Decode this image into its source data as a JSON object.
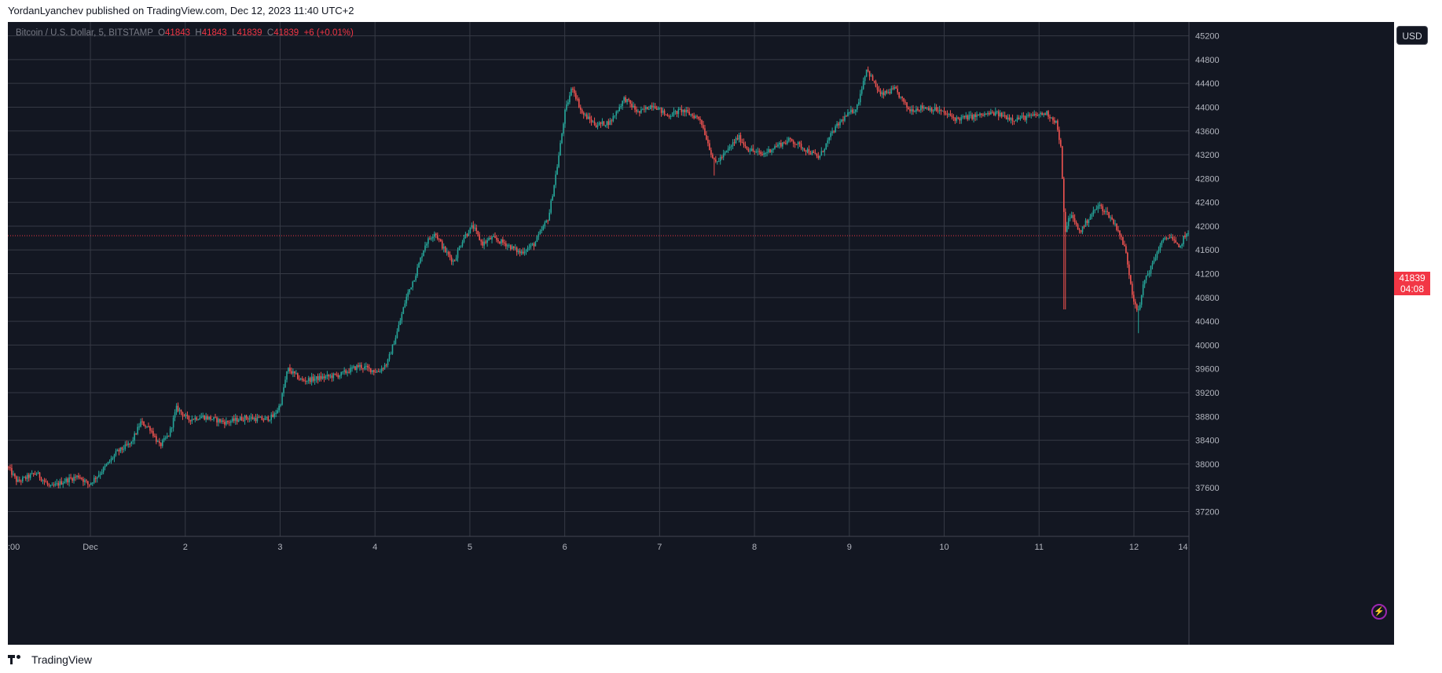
{
  "header": {
    "publisher_line": "YordanLyanchev published on TradingView.com, Dec 12, 2023 11:40 UTC+2"
  },
  "legend": {
    "symbol": "Bitcoin / U.S. Dollar, 5, BITSTAMP",
    "open_label": "O",
    "open": "41843",
    "high_label": "H",
    "high": "41843",
    "low_label": "L",
    "low": "41839",
    "close_label": "C",
    "close": "41839",
    "change": "+6 (+0.01%)"
  },
  "currency_button": "USD",
  "last_price": {
    "price": "41839",
    "countdown": "04:08"
  },
  "footer": {
    "brand": "TradingView"
  },
  "colors": {
    "background": "#131722",
    "up": "#26a69a",
    "down": "#ef5350",
    "grid": "#363a45",
    "text": "#b2b5be",
    "last_price": "#f23645"
  },
  "chart_data": {
    "type": "candlestick",
    "title": "Bitcoin / U.S. Dollar, 5, BITSTAMP",
    "x_tick_labels": [
      ":00",
      "Dec",
      "2",
      "3",
      "4",
      "5",
      "6",
      "7",
      "8",
      "9",
      "10",
      "11",
      "12",
      "14:"
    ],
    "x_tick_days": [
      0.0,
      0.87,
      1.87,
      2.87,
      3.87,
      4.87,
      5.87,
      6.87,
      7.87,
      8.87,
      9.87,
      10.87,
      11.87,
      12.4
    ],
    "y_ticks": [
      37200,
      37600,
      38000,
      38400,
      38800,
      39200,
      39600,
      40000,
      40400,
      40800,
      41200,
      41600,
      42000,
      42400,
      42800,
      43200,
      43600,
      44000,
      44400,
      44800,
      45200
    ],
    "ylim": [
      36850,
      45300
    ],
    "xlim_days": [
      0.0,
      12.45
    ],
    "last_price_line": 41839,
    "grid": true,
    "price_path": [
      [
        0.0,
        37950
      ],
      [
        0.1,
        37700
      ],
      [
        0.3,
        37850
      ],
      [
        0.45,
        37600
      ],
      [
        0.6,
        37720
      ],
      [
        0.75,
        37800
      ],
      [
        0.85,
        37650
      ],
      [
        1.0,
        37900
      ],
      [
        1.15,
        38200
      ],
      [
        1.3,
        38350
      ],
      [
        1.4,
        38700
      ],
      [
        1.5,
        38600
      ],
      [
        1.6,
        38300
      ],
      [
        1.7,
        38500
      ],
      [
        1.78,
        38950
      ],
      [
        1.9,
        38750
      ],
      [
        2.05,
        38800
      ],
      [
        2.3,
        38700
      ],
      [
        2.5,
        38780
      ],
      [
        2.7,
        38750
      ],
      [
        2.8,
        38800
      ],
      [
        2.87,
        39000
      ],
      [
        2.95,
        39600
      ],
      [
        3.1,
        39400
      ],
      [
        3.3,
        39450
      ],
      [
        3.5,
        39500
      ],
      [
        3.7,
        39650
      ],
      [
        3.9,
        39550
      ],
      [
        4.0,
        39700
      ],
      [
        4.1,
        40200
      ],
      [
        4.2,
        40800
      ],
      [
        4.3,
        41200
      ],
      [
        4.4,
        41700
      ],
      [
        4.5,
        41900
      ],
      [
        4.6,
        41600
      ],
      [
        4.7,
        41400
      ],
      [
        4.8,
        41800
      ],
      [
        4.9,
        42000
      ],
      [
        5.0,
        41700
      ],
      [
        5.1,
        41800
      ],
      [
        5.25,
        41700
      ],
      [
        5.4,
        41550
      ],
      [
        5.55,
        41700
      ],
      [
        5.7,
        42150
      ],
      [
        5.8,
        43100
      ],
      [
        5.87,
        43900
      ],
      [
        5.95,
        44350
      ],
      [
        6.05,
        43900
      ],
      [
        6.2,
        43700
      ],
      [
        6.35,
        43750
      ],
      [
        6.5,
        44150
      ],
      [
        6.65,
        43900
      ],
      [
        6.8,
        44050
      ],
      [
        6.95,
        43850
      ],
      [
        7.1,
        43950
      ],
      [
        7.3,
        43800
      ],
      [
        7.45,
        43050
      ],
      [
        7.55,
        43200
      ],
      [
        7.7,
        43500
      ],
      [
        7.8,
        43300
      ],
      [
        7.95,
        43200
      ],
      [
        8.1,
        43350
      ],
      [
        8.25,
        43450
      ],
      [
        8.4,
        43300
      ],
      [
        8.55,
        43150
      ],
      [
        8.7,
        43600
      ],
      [
        8.8,
        43800
      ],
      [
        8.95,
        44000
      ],
      [
        9.05,
        44650
      ],
      [
        9.2,
        44200
      ],
      [
        9.35,
        44300
      ],
      [
        9.5,
        43950
      ],
      [
        9.65,
        44000
      ],
      [
        9.8,
        43950
      ],
      [
        10.0,
        43800
      ],
      [
        10.2,
        43850
      ],
      [
        10.4,
        43900
      ],
      [
        10.6,
        43800
      ],
      [
        10.8,
        43850
      ],
      [
        10.95,
        43900
      ],
      [
        11.05,
        43750
      ],
      [
        11.1,
        43300
      ],
      [
        11.14,
        41900
      ],
      [
        11.2,
        42200
      ],
      [
        11.3,
        41900
      ],
      [
        11.4,
        42150
      ],
      [
        11.5,
        42350
      ],
      [
        11.6,
        42200
      ],
      [
        11.7,
        41950
      ],
      [
        11.78,
        41600
      ],
      [
        11.86,
        40800
      ],
      [
        11.92,
        40550
      ],
      [
        11.98,
        41100
      ],
      [
        12.05,
        41300
      ],
      [
        12.15,
        41700
      ],
      [
        12.25,
        41850
      ],
      [
        12.35,
        41600
      ],
      [
        12.4,
        41850
      ],
      [
        12.45,
        41839
      ]
    ]
  }
}
